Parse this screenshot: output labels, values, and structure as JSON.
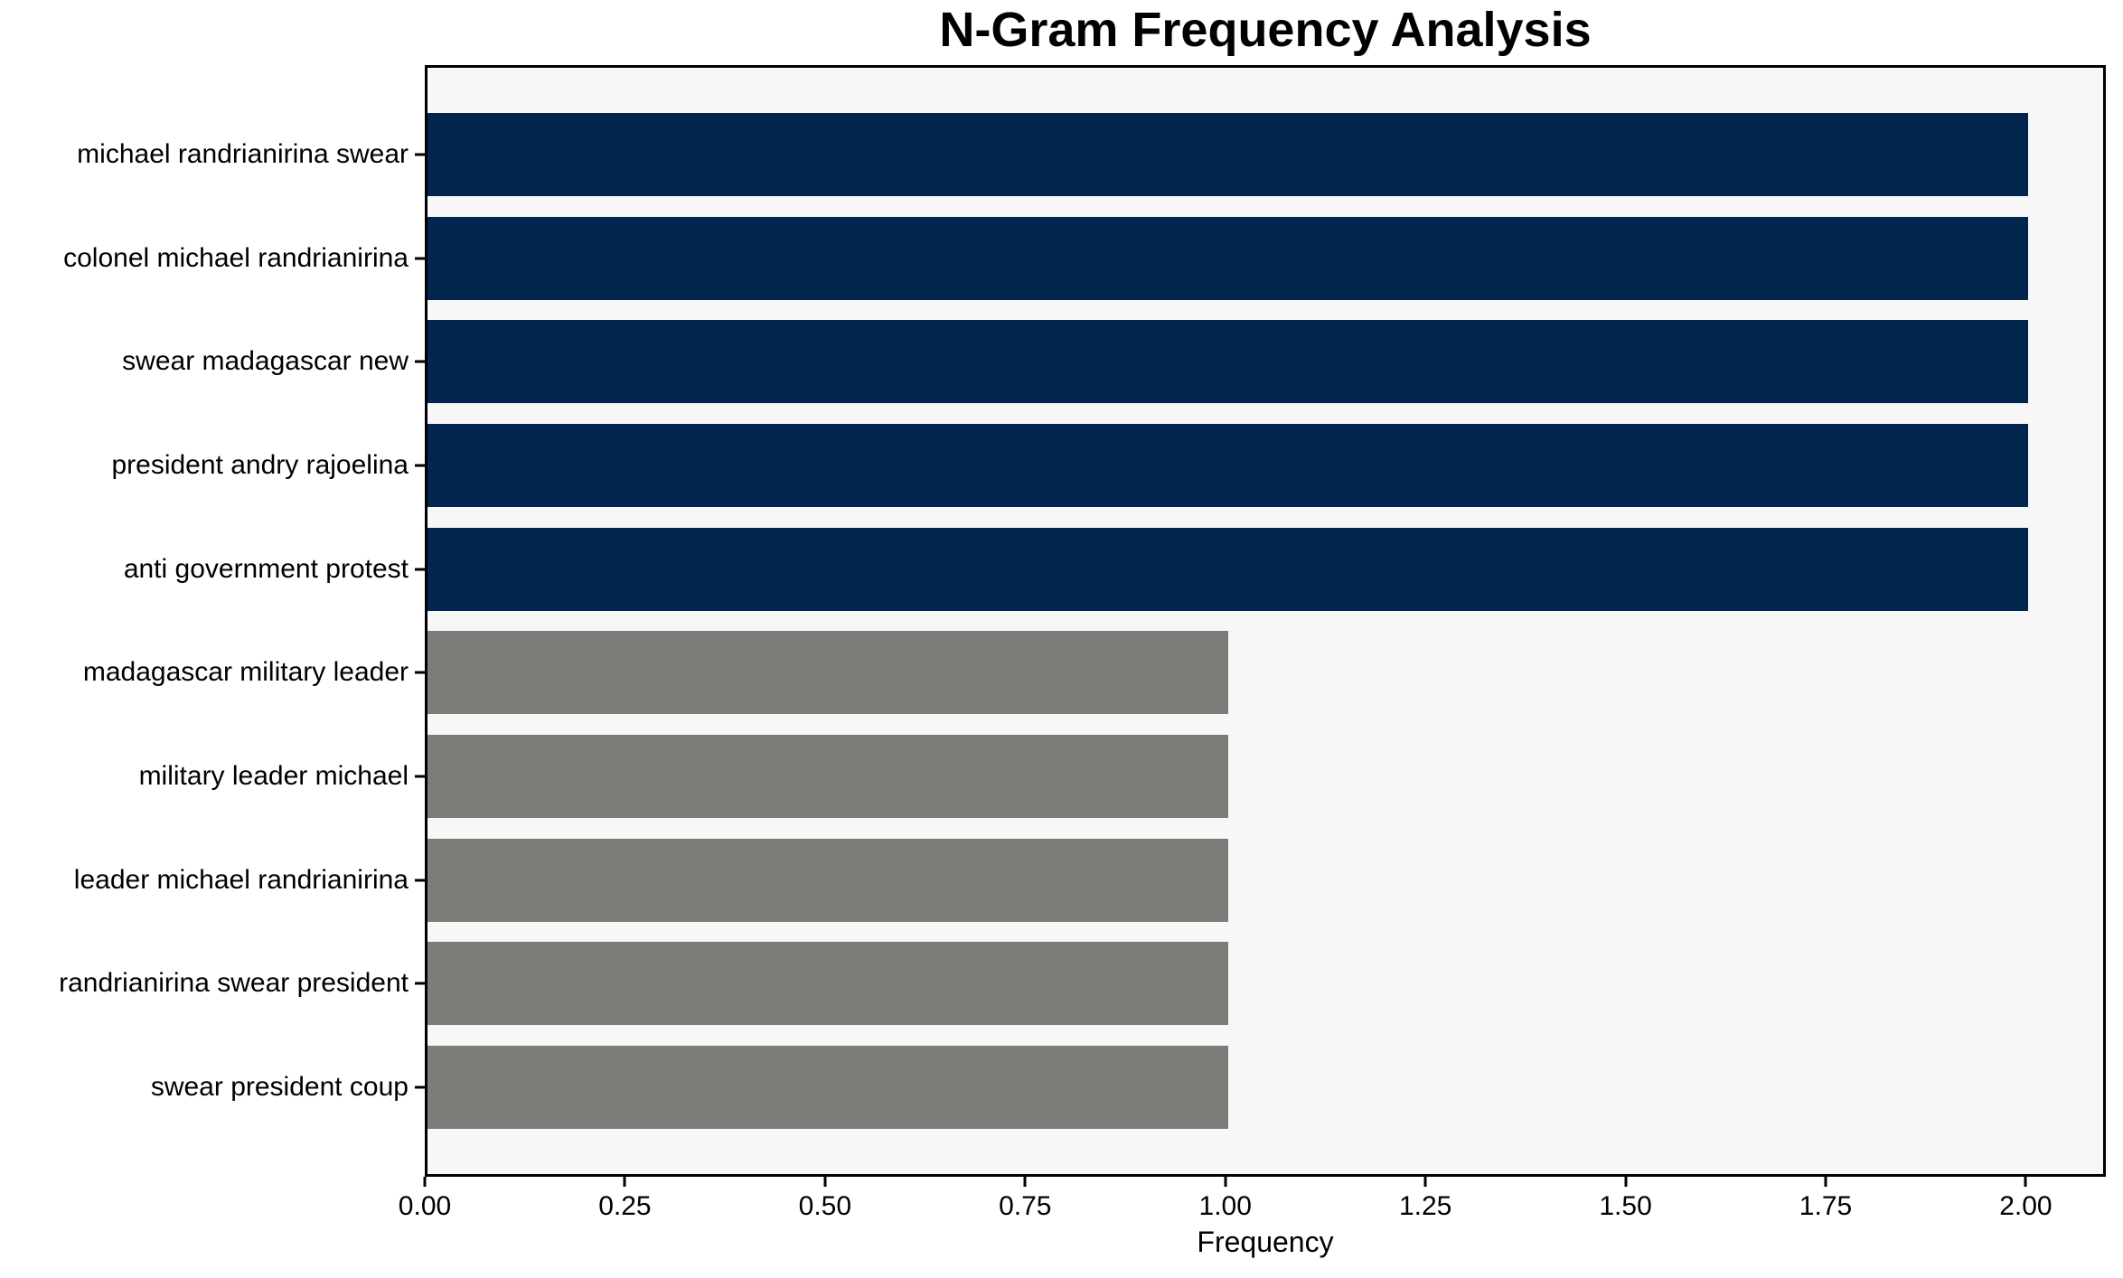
{
  "figure": {
    "background": "#ffffff",
    "plot_background": "#f7f7f7",
    "spine_color": "#000000"
  },
  "chart_data": {
    "type": "bar",
    "orientation": "horizontal",
    "title": "N-Gram Frequency Analysis",
    "xlabel": "Frequency",
    "ylabel": "",
    "categories": [
      "michael randrianirina swear",
      "colonel michael randrianirina",
      "swear madagascar new",
      "president andry rajoelina",
      "anti government protest",
      "madagascar military leader",
      "military leader michael",
      "leader michael randrianirina",
      "randrianirina swear president",
      "swear president coup"
    ],
    "values": [
      2,
      2,
      2,
      2,
      2,
      1,
      1,
      1,
      1,
      1
    ],
    "bar_colors": [
      "#02264e",
      "#02264e",
      "#02264e",
      "#02264e",
      "#02264e",
      "#7c7c78",
      "#7c7c78",
      "#7c7c78",
      "#7c7c78",
      "#7c7c78"
    ],
    "color_legend": {
      "high_frequency_color": "#02264e",
      "low_frequency_color": "#7c7c78"
    },
    "xlim": [
      0,
      2.1
    ],
    "xticks": [
      0,
      0.25,
      0.5,
      0.75,
      1.0,
      1.25,
      1.5,
      1.75,
      2.0
    ],
    "xtick_labels": [
      "0.00",
      "0.25",
      "0.50",
      "0.75",
      "1.00",
      "1.25",
      "1.50",
      "1.75",
      "2.00"
    ],
    "bar_height_fraction": 0.8,
    "grid": false,
    "legend_position": "none"
  }
}
